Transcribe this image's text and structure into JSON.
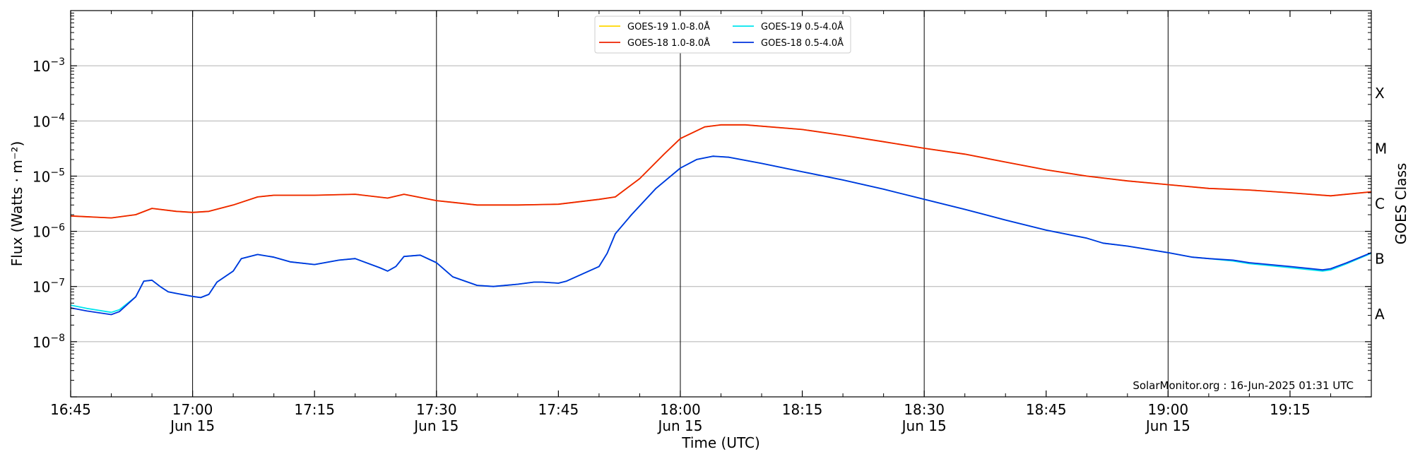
{
  "chart_data": {
    "type": "line",
    "title": "",
    "xlabel": "Time (UTC)",
    "ylabel": "Flux (Watts · m⁻²)",
    "y2label": "GOES Class",
    "yscale": "log",
    "ylim": [
      1e-09,
      0.01
    ],
    "xlim": [
      "16:45",
      "19:25"
    ],
    "grid": "horizontal at decades, vertical at half-hours",
    "legend_placement": "top-center",
    "x_ticks": [
      {
        "time": "16:45",
        "label": "16:45",
        "date": ""
      },
      {
        "time": "17:00",
        "label": "17:00",
        "date": "Jun 15"
      },
      {
        "time": "17:15",
        "label": "17:15",
        "date": ""
      },
      {
        "time": "17:30",
        "label": "17:30",
        "date": "Jun 15"
      },
      {
        "time": "17:45",
        "label": "17:45",
        "date": ""
      },
      {
        "time": "18:00",
        "label": "18:00",
        "date": "Jun 15"
      },
      {
        "time": "18:15",
        "label": "18:15",
        "date": ""
      },
      {
        "time": "18:30",
        "label": "18:30",
        "date": "Jun 15"
      },
      {
        "time": "18:45",
        "label": "18:45",
        "date": ""
      },
      {
        "time": "19:00",
        "label": "19:00",
        "date": "Jun 15"
      },
      {
        "time": "19:15",
        "label": "19:15",
        "date": ""
      }
    ],
    "y_ticks": [
      {
        "exp": -8,
        "base": "10",
        "sup": "−8"
      },
      {
        "exp": -7,
        "base": "10",
        "sup": "−7"
      },
      {
        "exp": -6,
        "base": "10",
        "sup": "−6"
      },
      {
        "exp": -5,
        "base": "10",
        "sup": "−5"
      },
      {
        "exp": -4,
        "base": "10",
        "sup": "−4"
      },
      {
        "exp": -3,
        "base": "10",
        "sup": "−3"
      }
    ],
    "goes_classes": [
      {
        "label": "A",
        "log_flux": -7.5
      },
      {
        "label": "B",
        "log_flux": -6.5
      },
      {
        "label": "C",
        "log_flux": -5.5
      },
      {
        "label": "M",
        "log_flux": -4.5
      },
      {
        "label": "X",
        "log_flux": -3.5
      }
    ],
    "series": [
      {
        "name": "GOES-19 1.0-8.0Å",
        "color": "#ffd700",
        "x": [
          "16:45",
          "16:50",
          "16:53",
          "16:55",
          "16:58",
          "17:00",
          "17:02",
          "17:05",
          "17:08",
          "17:10",
          "17:15",
          "17:20",
          "17:24",
          "17:26",
          "17:30",
          "17:35",
          "17:40",
          "17:45",
          "17:50",
          "17:52",
          "17:55",
          "17:58",
          "18:00",
          "18:03",
          "18:05",
          "18:08",
          "18:15",
          "18:20",
          "18:25",
          "18:30",
          "18:35",
          "18:40",
          "18:45",
          "18:50",
          "18:55",
          "19:00",
          "19:05",
          "19:10",
          "19:15",
          "19:20",
          "19:25"
        ],
        "y": [
          1.9e-06,
          1.75e-06,
          2e-06,
          2.6e-06,
          2.3e-06,
          2.2e-06,
          2.3e-06,
          3e-06,
          4.2e-06,
          4.5e-06,
          4.5e-06,
          4.7e-06,
          4e-06,
          4.7e-06,
          3.6e-06,
          3e-06,
          3e-06,
          3.1e-06,
          3.8e-06,
          4.2e-06,
          9e-06,
          2.5e-05,
          4.8e-05,
          7.8e-05,
          8.5e-05,
          8.5e-05,
          7e-05,
          5.5e-05,
          4.2e-05,
          3.2e-05,
          2.5e-05,
          1.8e-05,
          1.3e-05,
          1e-05,
          8.2e-06,
          7e-06,
          6e-06,
          5.6e-06,
          5e-06,
          4.4e-06,
          5.2e-06
        ]
      },
      {
        "name": "GOES-18 1.0-8.0Å",
        "color": "#ee2200",
        "x": [
          "16:45",
          "16:50",
          "16:53",
          "16:55",
          "16:58",
          "17:00",
          "17:02",
          "17:05",
          "17:08",
          "17:10",
          "17:15",
          "17:20",
          "17:24",
          "17:26",
          "17:30",
          "17:35",
          "17:40",
          "17:45",
          "17:50",
          "17:52",
          "17:55",
          "17:58",
          "18:00",
          "18:03",
          "18:05",
          "18:08",
          "18:15",
          "18:20",
          "18:25",
          "18:30",
          "18:35",
          "18:40",
          "18:45",
          "18:50",
          "18:55",
          "19:00",
          "19:05",
          "19:10",
          "19:15",
          "19:20",
          "19:25"
        ],
        "y": [
          1.9e-06,
          1.75e-06,
          2e-06,
          2.6e-06,
          2.3e-06,
          2.2e-06,
          2.3e-06,
          3e-06,
          4.2e-06,
          4.5e-06,
          4.5e-06,
          4.7e-06,
          4e-06,
          4.7e-06,
          3.6e-06,
          3e-06,
          3e-06,
          3.1e-06,
          3.8e-06,
          4.2e-06,
          9e-06,
          2.5e-05,
          4.8e-05,
          7.8e-05,
          8.5e-05,
          8.5e-05,
          7e-05,
          5.5e-05,
          4.2e-05,
          3.2e-05,
          2.5e-05,
          1.8e-05,
          1.3e-05,
          1e-05,
          8.2e-06,
          7e-06,
          6e-06,
          5.6e-06,
          5e-06,
          4.4e-06,
          5.2e-06
        ]
      },
      {
        "name": "GOES-19 0.5-4.0Å",
        "color": "#00e5ee",
        "x": [
          "16:45",
          "16:47",
          "16:50",
          "16:51",
          "16:53",
          "16:54",
          "16:55",
          "16:56",
          "16:57",
          "16:58",
          "17:00",
          "17:01",
          "17:02",
          "17:03",
          "17:05",
          "17:06",
          "17:08",
          "17:10",
          "17:12",
          "17:15",
          "17:18",
          "17:20",
          "17:23",
          "17:24",
          "17:25",
          "17:26",
          "17:28",
          "17:30",
          "17:32",
          "17:35",
          "17:37",
          "17:40",
          "17:42",
          "17:43",
          "17:45",
          "17:46",
          "17:50",
          "17:51",
          "17:52",
          "17:54",
          "17:57",
          "18:00",
          "18:02",
          "18:04",
          "18:06",
          "18:10",
          "18:15",
          "18:20",
          "18:25",
          "18:30",
          "18:35",
          "18:40",
          "18:45",
          "18:50",
          "18:52",
          "18:55",
          "19:00",
          "19:03",
          "19:05",
          "19:08",
          "19:10",
          "19:15",
          "19:19",
          "19:20",
          "19:22",
          "19:25"
        ],
        "y": [
          4.6e-08,
          4e-08,
          3.4e-08,
          3.8e-08,
          6.5e-08,
          1.25e-07,
          1.3e-07,
          1e-07,
          8e-08,
          7.5e-08,
          6.6e-08,
          6.3e-08,
          7.2e-08,
          1.2e-07,
          1.9e-07,
          3.2e-07,
          3.8e-07,
          3.4e-07,
          2.8e-07,
          2.5e-07,
          3e-07,
          3.2e-07,
          2.2e-07,
          1.9e-07,
          2.3e-07,
          3.5e-07,
          3.7e-07,
          2.7e-07,
          1.5e-07,
          1.05e-07,
          1e-07,
          1.1e-07,
          1.2e-07,
          1.2e-07,
          1.15e-07,
          1.25e-07,
          2.3e-07,
          4e-07,
          9e-07,
          2e-06,
          6e-06,
          1.4e-05,
          2e-05,
          2.3e-05,
          2.2e-05,
          1.7e-05,
          1.2e-05,
          8.5e-06,
          5.8e-06,
          3.8e-06,
          2.5e-06,
          1.6e-06,
          1.05e-06,
          7.5e-07,
          6.1e-07,
          5.4e-07,
          4.1e-07,
          3.4e-07,
          3.2e-07,
          2.9e-07,
          2.6e-07,
          2.2e-07,
          1.9e-07,
          2e-07,
          2.6e-07,
          4e-07
        ]
      },
      {
        "name": "GOES-18 0.5-4.0Å",
        "color": "#0033dd",
        "x": [
          "16:45",
          "16:47",
          "16:50",
          "16:51",
          "16:53",
          "16:54",
          "16:55",
          "16:56",
          "16:57",
          "16:58",
          "17:00",
          "17:01",
          "17:02",
          "17:03",
          "17:05",
          "17:06",
          "17:08",
          "17:10",
          "17:12",
          "17:15",
          "17:18",
          "17:20",
          "17:23",
          "17:24",
          "17:25",
          "17:26",
          "17:28",
          "17:30",
          "17:32",
          "17:35",
          "17:37",
          "17:40",
          "17:42",
          "17:43",
          "17:45",
          "17:46",
          "17:50",
          "17:51",
          "17:52",
          "17:54",
          "17:57",
          "18:00",
          "18:02",
          "18:04",
          "18:06",
          "18:10",
          "18:15",
          "18:20",
          "18:25",
          "18:30",
          "18:35",
          "18:40",
          "18:45",
          "18:50",
          "18:52",
          "18:55",
          "19:00",
          "19:03",
          "19:05",
          "19:08",
          "19:10",
          "19:15",
          "19:19",
          "19:20",
          "19:22",
          "19:25"
        ],
        "y": [
          4.1e-08,
          3.6e-08,
          3.1e-08,
          3.5e-08,
          6.5e-08,
          1.25e-07,
          1.3e-07,
          1e-07,
          8e-08,
          7.5e-08,
          6.6e-08,
          6.3e-08,
          7.2e-08,
          1.2e-07,
          1.9e-07,
          3.2e-07,
          3.8e-07,
          3.4e-07,
          2.8e-07,
          2.5e-07,
          3e-07,
          3.2e-07,
          2.2e-07,
          1.9e-07,
          2.3e-07,
          3.5e-07,
          3.7e-07,
          2.7e-07,
          1.5e-07,
          1.05e-07,
          1e-07,
          1.1e-07,
          1.2e-07,
          1.2e-07,
          1.15e-07,
          1.25e-07,
          2.3e-07,
          4e-07,
          9e-07,
          2e-06,
          6e-06,
          1.4e-05,
          2e-05,
          2.3e-05,
          2.2e-05,
          1.7e-05,
          1.2e-05,
          8.5e-06,
          5.8e-06,
          3.8e-06,
          2.5e-06,
          1.6e-06,
          1.05e-06,
          7.5e-07,
          6.1e-07,
          5.4e-07,
          4.1e-07,
          3.4e-07,
          3.2e-07,
          3e-07,
          2.7e-07,
          2.3e-07,
          2e-07,
          2.1e-07,
          2.7e-07,
          4.1e-07
        ]
      }
    ],
    "annotation": "SolarMonitor.org : 16-Jun-2025 01:31 UTC"
  }
}
